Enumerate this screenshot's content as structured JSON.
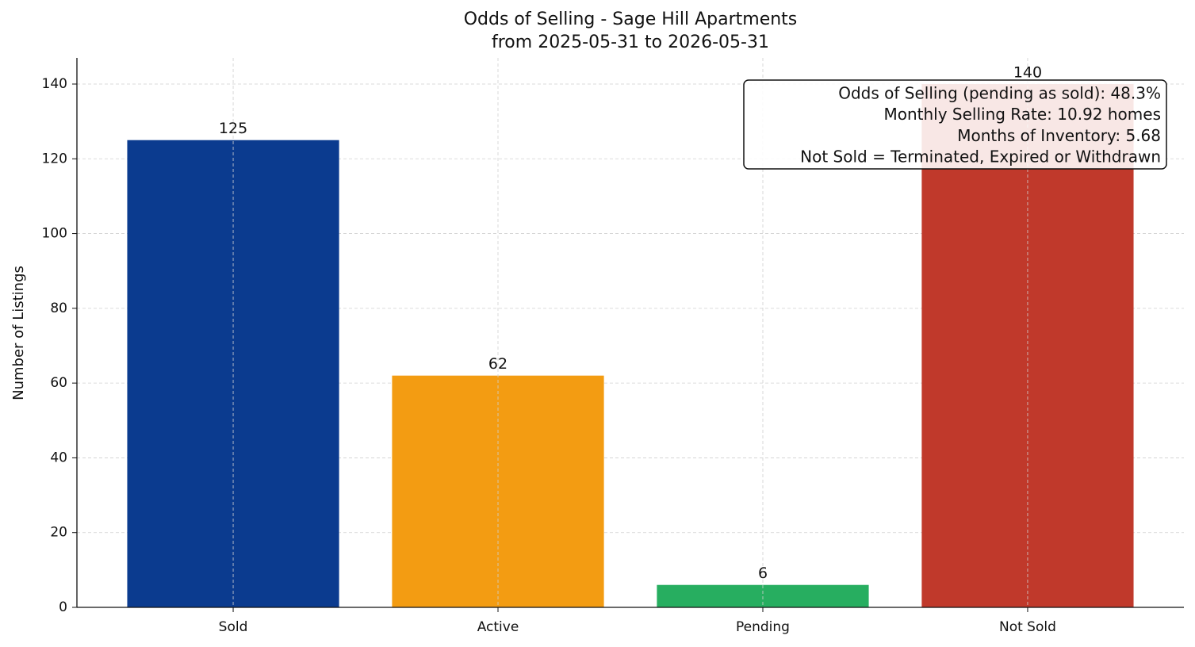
{
  "chart_data": {
    "type": "bar",
    "title": "Odds of Selling - Sage Hill Apartments",
    "subtitle": "from 2025-05-31 to 2026-05-31",
    "y_label": "Number of Listings",
    "categories": [
      "Sold",
      "Active",
      "Pending",
      "Not Sold"
    ],
    "values": [
      125,
      62,
      6,
      140
    ],
    "colors": [
      "#0b3b8f",
      "#f39c12",
      "#27ae60",
      "#c0392b"
    ],
    "ylim": [
      0,
      147
    ],
    "yticks": [
      0,
      20,
      40,
      60,
      80,
      100,
      120,
      140
    ],
    "grid": true,
    "annotation": [
      "Odds of Selling (pending as sold): 48.3%",
      "Monthly Selling Rate: 10.92 homes",
      "Months of Inventory: 5.68",
      "Not Sold = Terminated, Expired or Withdrawn"
    ]
  }
}
